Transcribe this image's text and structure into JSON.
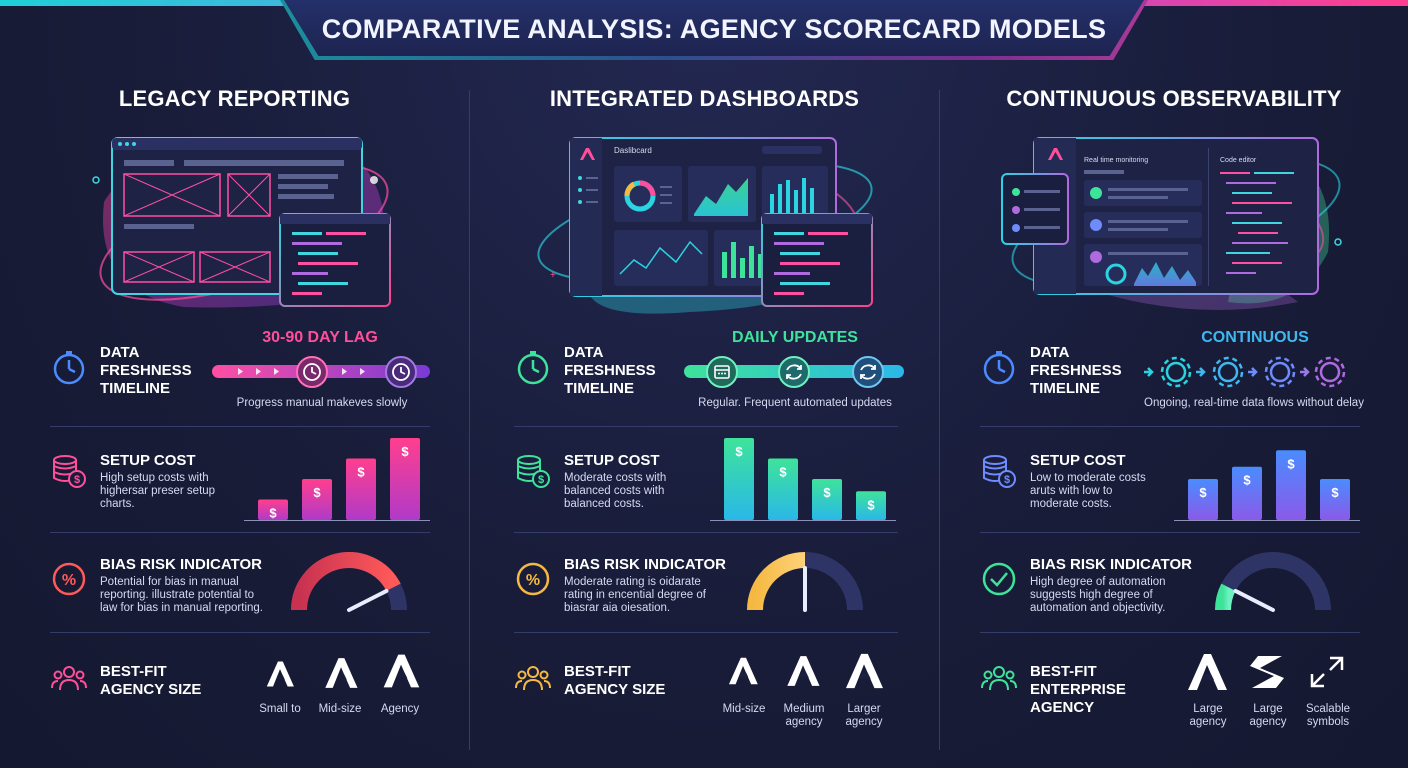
{
  "title": "COMPARATIVE ANALYSIS: AGENCY SCORECARD MODELS",
  "columns": [
    {
      "title": "LEGACY REPORTING",
      "accent_color": "#ff3f8e",
      "freshness": {
        "label_lines": [
          "DATA",
          "FRESHNESS",
          "TIMELINE"
        ],
        "value": "30-90 DAY LAG",
        "caption": "Progress manual makeves slowly"
      },
      "setup_cost": {
        "label": "SETUP COST",
        "desc_lines": [
          "High setup costs with",
          "highersar preser setup",
          "charts."
        ],
        "bar_values": [
          1,
          2,
          3,
          4
        ]
      },
      "bias": {
        "label": "BIAS RISK INDICATOR",
        "desc_lines": [
          "Potential for bias in manual",
          "reporting. illustrate potential to",
          "law for bias in manual reporting."
        ],
        "level": 0.85
      },
      "fit": {
        "label_lines": [
          "BEST-FIT",
          "AGENCY SIZE"
        ],
        "sizes": [
          "Small to",
          "Mid-size",
          "Agency"
        ]
      }
    },
    {
      "title": "INTEGRATED DASHBOARDS",
      "accent_color": "#3ee39a",
      "illus_label": "Daslibcard",
      "freshness": {
        "label_lines": [
          "DATA",
          "FRESHNESS",
          "TIMELINE"
        ],
        "value": "DAILY UPDATES",
        "caption": "Regular. Frequent automated updates"
      },
      "setup_cost": {
        "label": "SETUP COST",
        "desc_lines": [
          "Moderate costs with",
          "balanced costs with",
          "balanced costs."
        ],
        "bar_values": [
          4,
          3,
          2,
          1.4
        ]
      },
      "bias": {
        "label": "BIAS RISK INDICATOR",
        "desc_lines": [
          "Moderate rating is oidarate",
          "rating in encential degree of",
          "biasrar aia oiesation."
        ],
        "level": 0.5
      },
      "fit": {
        "label_lines": [
          "BEST-FIT",
          "AGENCY SIZE"
        ],
        "sizes": [
          "Mid-size",
          "Medium agency",
          "Larger agency"
        ]
      }
    },
    {
      "title": "CONTINUOUS OBSERVABILITY",
      "accent_color": "#6f8cff",
      "illus_label_1": "Real time monitoring",
      "illus_label_2": "Code editor",
      "freshness": {
        "label_lines": [
          "DATA",
          "FRESHNESS",
          "TIMELINE"
        ],
        "value": "CONTINUOUS",
        "caption": "Ongoing, real-time data flows without delay"
      },
      "setup_cost": {
        "label": "SETUP COST",
        "desc_lines": [
          "Low to moderate costs",
          "aruts with low to",
          "moderate costs."
        ],
        "bar_values": [
          2,
          2.6,
          3.4,
          2
        ]
      },
      "bias": {
        "label": "BIAS RISK INDICATOR",
        "desc_lines": [
          "High degree of automation",
          "suggests high degree of",
          "automation and objectivity."
        ],
        "level": 0.15
      },
      "fit": {
        "label_lines": [
          "BEST-FIT",
          "ENTERPRISE",
          "AGENCY"
        ],
        "sizes": [
          "Large agency",
          "Large agency",
          "Scalable symbols"
        ]
      }
    }
  ],
  "icons": {
    "freshness": "stopwatch-icon",
    "cost": "coin-stack-icon",
    "bias_1": "percent-icon",
    "bias_2": "percent-icon",
    "bias_3": "checkmark-icon",
    "fit": "people-group-icon"
  }
}
